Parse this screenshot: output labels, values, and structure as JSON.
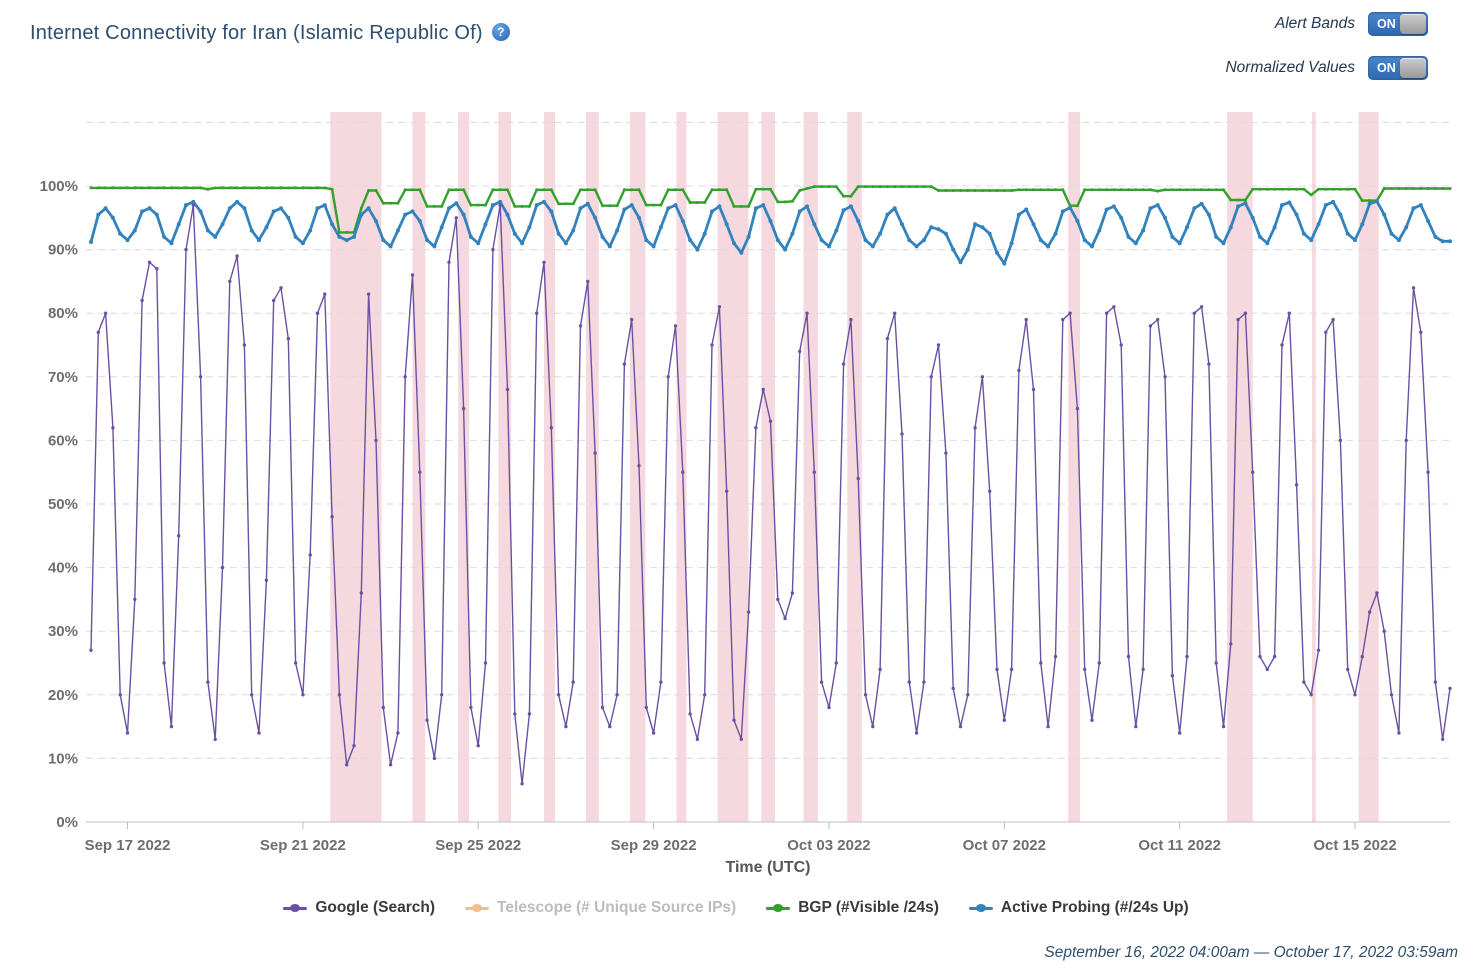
{
  "header": {
    "title": "Internet Connectivity for Iran (Islamic Republic Of)",
    "help_glyph": "?",
    "toggles": [
      {
        "label": "Alert Bands",
        "state": "ON"
      },
      {
        "label": "Normalized Values",
        "state": "ON"
      }
    ]
  },
  "chart_data": {
    "type": "line",
    "title": "Internet Connectivity for Iran (Islamic Republic Of)",
    "xlabel": "Time (UTC)",
    "ylabel": "",
    "x_start": "September 16, 2022 04:00am UTC",
    "x_end": "October 17, 2022 03:59am UTC",
    "total_hours": 744,
    "sample_interval_hours": 4,
    "ylim": [
      0,
      110
    ],
    "grid": "dashed-horizontal",
    "legend_position": "bottom",
    "ytick_percent": [
      0,
      10,
      20,
      30,
      40,
      50,
      60,
      70,
      80,
      90,
      100
    ],
    "xticks": [
      {
        "label": "Sep 17 2022",
        "hour_offset": 20
      },
      {
        "label": "Sep 21 2022",
        "hour_offset": 116
      },
      {
        "label": "Sep 25 2022",
        "hour_offset": 212
      },
      {
        "label": "Sep 29 2022",
        "hour_offset": 308
      },
      {
        "label": "Oct 03 2022",
        "hour_offset": 404
      },
      {
        "label": "Oct 07 2022",
        "hour_offset": 500
      },
      {
        "label": "Oct 11 2022",
        "hour_offset": 596
      },
      {
        "label": "Oct 15 2022",
        "hour_offset": 692
      }
    ],
    "alert_band_color": "rgba(214,80,105,0.22)",
    "alert_bands": [
      {
        "start_h": 131,
        "end_h": 159,
        "start_utc": "Sep 21 15:00",
        "end_utc": "Sep 22 19:00"
      },
      {
        "start_h": 176,
        "end_h": 183,
        "start_utc": "Sep 23 12:00",
        "end_utc": "Sep 23 19:00"
      },
      {
        "start_h": 201,
        "end_h": 207,
        "start_utc": "Sep 24 13:00",
        "end_utc": "Sep 24 19:00"
      },
      {
        "start_h": 223,
        "end_h": 230,
        "start_utc": "Sep 25 11:00",
        "end_utc": "Sep 25 18:00"
      },
      {
        "start_h": 248,
        "end_h": 254,
        "start_utc": "Sep 26 12:00",
        "end_utc": "Sep 26 18:00"
      },
      {
        "start_h": 271,
        "end_h": 278,
        "start_utc": "Sep 27 11:00",
        "end_utc": "Sep 27 18:00"
      },
      {
        "start_h": 295,
        "end_h": 303.5,
        "start_utc": "Sep 28 11:00",
        "end_utc": "Sep 28 19:30"
      },
      {
        "start_h": 320.5,
        "end_h": 326,
        "start_utc": "Sep 29 12:30",
        "end_utc": "Sep 29 18:00"
      },
      {
        "start_h": 343,
        "end_h": 360,
        "start_utc": "Sep 30 11:00",
        "end_utc": "Oct 01 04:00"
      },
      {
        "start_h": 367,
        "end_h": 374.5,
        "start_utc": "Oct 01 11:00",
        "end_utc": "Oct 01 18:30"
      },
      {
        "start_h": 390,
        "end_h": 398,
        "start_utc": "Oct 02 10:00",
        "end_utc": "Oct 02 18:00"
      },
      {
        "start_h": 414,
        "end_h": 422,
        "start_utc": "Oct 03 10:00",
        "end_utc": "Oct 03 18:00"
      },
      {
        "start_h": 535,
        "end_h": 541.5,
        "start_utc": "Oct 08 11:00",
        "end_utc": "Oct 08 17:30"
      },
      {
        "start_h": 622,
        "end_h": 636,
        "start_utc": "Oct 12 02:00",
        "end_utc": "Oct 12 16:00"
      },
      {
        "start_h": 668.5,
        "end_h": 670.5,
        "start_utc": "Oct 14 00:30",
        "end_utc": "Oct 14 02:30"
      },
      {
        "start_h": 694,
        "end_h": 705,
        "start_utc": "Oct 15 02:00",
        "end_utc": "Oct 15 13:00"
      }
    ],
    "series": [
      {
        "id": "google",
        "name": "Google (Search)",
        "color": "#6a51a3",
        "enabled": true,
        "values": [
          27,
          77,
          80,
          62,
          20,
          14,
          35,
          82,
          88,
          87,
          25,
          15,
          45,
          90,
          97,
          70,
          22,
          13,
          40,
          85,
          89,
          75,
          20,
          14,
          38,
          82,
          84,
          76,
          25,
          20,
          42,
          80,
          83,
          48,
          20,
          9,
          12,
          36,
          83,
          60,
          18,
          9,
          14,
          70,
          86,
          55,
          16,
          10,
          20,
          88,
          95,
          65,
          18,
          12,
          25,
          90,
          97,
          68,
          17,
          6,
          17,
          80,
          88,
          62,
          20,
          15,
          22,
          78,
          85,
          58,
          18,
          15,
          20,
          72,
          79,
          56,
          18,
          14,
          22,
          70,
          78,
          55,
          17,
          13,
          20,
          75,
          81,
          52,
          16,
          13,
          33,
          62,
          68,
          63,
          35,
          32,
          36,
          74,
          80,
          55,
          22,
          18,
          25,
          72,
          79,
          54,
          20,
          15,
          24,
          76,
          80,
          61,
          22,
          14,
          22,
          70,
          75,
          58,
          21,
          15,
          20,
          62,
          70,
          52,
          24,
          16,
          24,
          71,
          79,
          68,
          25,
          15,
          26,
          79,
          80,
          65,
          24,
          16,
          25,
          80,
          81,
          75,
          26,
          15,
          24,
          78,
          79,
          70,
          23,
          14,
          26,
          80,
          81,
          72,
          25,
          15,
          28,
          79,
          80,
          55,
          26,
          24,
          26,
          75,
          80,
          53,
          22,
          20,
          27,
          77,
          79,
          60,
          24,
          20,
          26,
          33,
          36,
          30,
          20,
          14,
          60,
          84,
          77,
          55,
          22,
          13,
          21
        ]
      },
      {
        "id": "telescope",
        "name": "Telescope (# Unique Source IPs)",
        "color": "#f4bd8a",
        "enabled": false,
        "values": []
      },
      {
        "id": "bgp",
        "name": "BGP (#Visible /24s)",
        "color": "#33a02c",
        "enabled": true,
        "values": [
          99.7,
          99.7,
          99.7,
          99.7,
          99.7,
          99.7,
          99.7,
          99.7,
          99.7,
          99.7,
          99.7,
          99.7,
          99.7,
          99.7,
          99.7,
          99.7,
          99.5,
          99.7,
          99.7,
          99.7,
          99.7,
          99.7,
          99.7,
          99.7,
          99.7,
          99.7,
          99.7,
          99.7,
          99.7,
          99.7,
          99.7,
          99.7,
          99.7,
          99.5,
          92.7,
          92.7,
          92.7,
          96.5,
          99.3,
          99.3,
          97.3,
          97.3,
          97.3,
          99.4,
          99.4,
          99.4,
          96.8,
          96.8,
          96.8,
          99.4,
          99.4,
          99.4,
          97,
          97,
          97,
          99.4,
          99.4,
          99.4,
          96.8,
          96.8,
          96.8,
          99.4,
          99.4,
          99.4,
          97.2,
          97.2,
          97.2,
          99.4,
          99.4,
          99.4,
          96.9,
          96.9,
          96.9,
          99.4,
          99.4,
          99.4,
          97,
          97,
          97,
          99.4,
          99.4,
          99.4,
          97.4,
          97.4,
          97.4,
          99.4,
          99.4,
          99.4,
          96.8,
          96.8,
          96.8,
          99.5,
          99.5,
          99.5,
          97.5,
          97.5,
          97.6,
          99.3,
          99.6,
          99.9,
          99.9,
          99.9,
          99.9,
          98.4,
          98.4,
          99.9,
          99.9,
          99.9,
          99.9,
          99.9,
          99.9,
          99.9,
          99.9,
          99.9,
          99.9,
          99.9,
          99.3,
          99.3,
          99.3,
          99.3,
          99.3,
          99.3,
          99.3,
          99.3,
          99.3,
          99.3,
          99.3,
          99.4,
          99.4,
          99.4,
          99.4,
          99.4,
          99.4,
          99.4,
          96.9,
          96.9,
          99.4,
          99.4,
          99.4,
          99.4,
          99.4,
          99.4,
          99.4,
          99.4,
          99.4,
          99.4,
          99.2,
          99.4,
          99.4,
          99.4,
          99.4,
          99.4,
          99.4,
          99.4,
          99.4,
          99.4,
          97.8,
          97.8,
          97.8,
          99.5,
          99.5,
          99.5,
          99.5,
          99.5,
          99.5,
          99.5,
          99.5,
          98.6,
          99.5,
          99.5,
          99.5,
          99.5,
          99.5,
          99.5,
          97.7,
          97.7,
          97.7,
          99.6,
          99.6,
          99.6,
          99.6,
          99.6,
          99.6,
          99.6,
          99.6,
          99.6,
          99.6
        ]
      },
      {
        "id": "probing",
        "name": "Active Probing (#/24s Up)",
        "color": "#3182bd",
        "enabled": true,
        "values": [
          91.2,
          95.5,
          96.5,
          95,
          92.5,
          91.5,
          93,
          96,
          96.5,
          95.5,
          92,
          91,
          94,
          97,
          97.5,
          96,
          93,
          92,
          94,
          96.5,
          97.5,
          96.5,
          93,
          91.5,
          93.5,
          96,
          96.5,
          95,
          92,
          91,
          93,
          96.5,
          97,
          94,
          92,
          91.5,
          92,
          95.5,
          96.5,
          94.5,
          91.5,
          90.5,
          93,
          95.5,
          96,
          94.5,
          91.5,
          90.5,
          93.5,
          96.5,
          97.3,
          95.5,
          92,
          91,
          94,
          97,
          97.5,
          95.5,
          92.5,
          91,
          93.5,
          97,
          97.5,
          96,
          92.5,
          91,
          93,
          96.5,
          97.2,
          95,
          92,
          90.5,
          93,
          96.3,
          97,
          95,
          91.5,
          90.5,
          93.5,
          96.5,
          97,
          94.5,
          91.5,
          90,
          92.5,
          96,
          96.8,
          94,
          91,
          89.5,
          92,
          96.5,
          97,
          94.5,
          91.5,
          90,
          92.5,
          96,
          96.8,
          94,
          91.5,
          90.5,
          93,
          96.2,
          96.8,
          94.5,
          91.5,
          90.5,
          92.5,
          95.5,
          96.5,
          94,
          91.5,
          90.5,
          91.5,
          93.5,
          93.2,
          92.5,
          90,
          88,
          90,
          94,
          93.5,
          92.5,
          89.5,
          87.8,
          91,
          95.5,
          96.3,
          94,
          91.5,
          90.5,
          92.5,
          96,
          96.6,
          94.5,
          91.5,
          90.5,
          93,
          96.3,
          96.8,
          95,
          92,
          91,
          93,
          96.5,
          97,
          95,
          92,
          91,
          93.5,
          96.5,
          97.2,
          95.5,
          92,
          91,
          93.5,
          96.8,
          97.3,
          95,
          92,
          91,
          93.5,
          97,
          97.4,
          95.5,
          92.5,
          91.5,
          94,
          97,
          97.5,
          95.5,
          92.5,
          91.5,
          94,
          97.2,
          97.6,
          95.5,
          92.5,
          91.5,
          93.5,
          96.5,
          97,
          94.5,
          92,
          91.3,
          91.3
        ]
      }
    ]
  },
  "footer": {
    "date_range": "September 16, 2022 04:00am — October 17, 2022 03:59am"
  }
}
